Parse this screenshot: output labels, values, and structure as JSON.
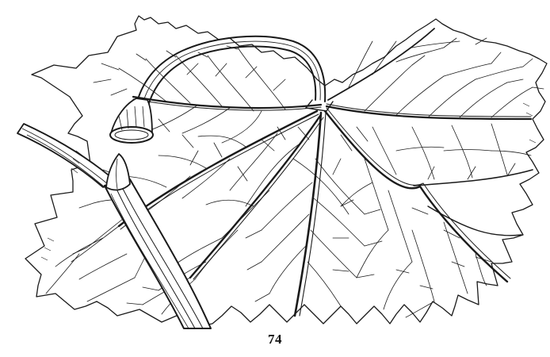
{
  "figure": {
    "number": "74"
  },
  "colors": {
    "ink": "#1a1a1a",
    "paper": "#ffffff"
  }
}
